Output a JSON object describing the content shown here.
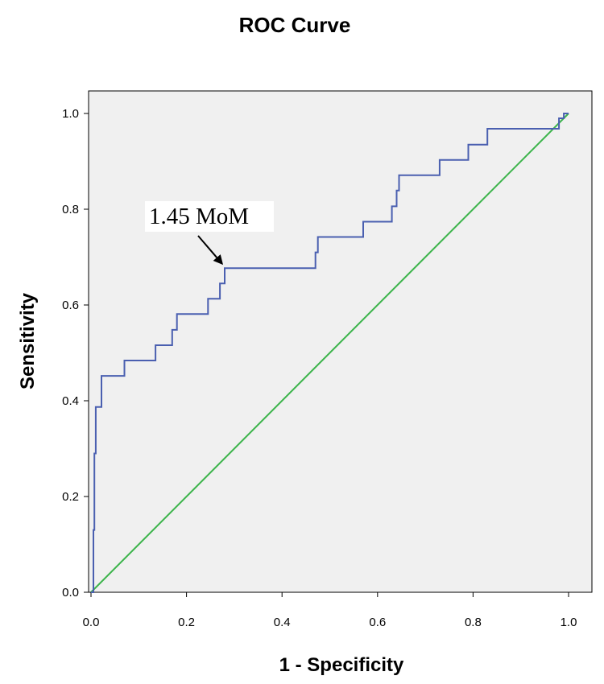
{
  "chart_data": {
    "type": "line",
    "title": "ROC Curve",
    "xlabel": "1 - Specificity",
    "ylabel": "Sensitivity",
    "xlim": [
      0,
      1
    ],
    "ylim": [
      0,
      1
    ],
    "x_ticks": [
      "0.0",
      "0.2",
      "0.4",
      "0.6",
      "0.8",
      "1.0"
    ],
    "y_ticks": [
      "0.0",
      "0.2",
      "0.4",
      "0.6",
      "0.8",
      "1.0"
    ],
    "grid": false,
    "plot_background": "#f0f0f0",
    "series": [
      {
        "color": "#4a5fb0",
        "x": [
          0,
          0.005,
          0.005,
          0.007,
          0.007,
          0.01,
          0.01,
          0.022,
          0.022,
          0.07,
          0.07,
          0.135,
          0.135,
          0.17,
          0.17,
          0.18,
          0.18,
          0.245,
          0.245,
          0.27,
          0.27,
          0.28,
          0.28,
          0.47,
          0.47,
          0.475,
          0.475,
          0.57,
          0.57,
          0.63,
          0.63,
          0.64,
          0.64,
          0.645,
          0.645,
          0.73,
          0.73,
          0.79,
          0.79,
          0.83,
          0.83,
          0.98,
          0.98,
          0.99,
          0.99,
          1.0
        ],
        "y": [
          0,
          0,
          0.13,
          0.13,
          0.29,
          0.29,
          0.387,
          0.387,
          0.452,
          0.452,
          0.484,
          0.484,
          0.516,
          0.516,
          0.548,
          0.548,
          0.581,
          0.581,
          0.613,
          0.613,
          0.645,
          0.645,
          0.677,
          0.677,
          0.71,
          0.71,
          0.742,
          0.742,
          0.774,
          0.774,
          0.806,
          0.806,
          0.839,
          0.839,
          0.871,
          0.871,
          0.903,
          0.903,
          0.935,
          0.935,
          0.968,
          0.968,
          0.99,
          0.99,
          1.0,
          1.0
        ]
      },
      {
        "color": "#3cb44b",
        "x": [
          0,
          1
        ],
        "y": [
          0,
          1
        ]
      }
    ],
    "annotations": [
      {
        "text": "1.45 MoM",
        "points_to": {
          "x": 0.28,
          "y": 0.677
        }
      }
    ]
  }
}
